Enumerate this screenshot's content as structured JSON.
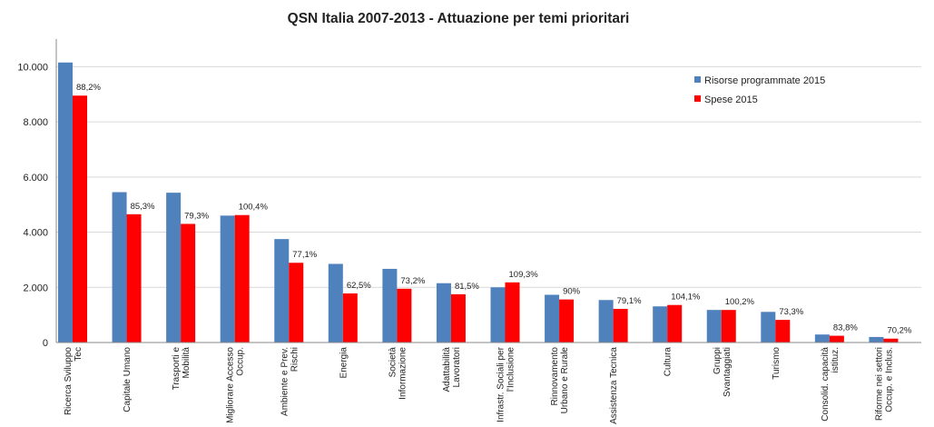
{
  "chart_data": {
    "type": "bar",
    "title": "QSN Italia 2007-2013 - Attuazione per temi prioritari",
    "xlabel": "",
    "ylabel": "",
    "ylim": [
      0,
      11000
    ],
    "yticks": [
      "0",
      "2.000",
      "4.000",
      "6.000",
      "8.000",
      "10.000"
    ],
    "grid": true,
    "legend_position": "top-right",
    "colors": {
      "Risorse programmate 2015": "#4F81BD",
      "Spese 2015": "#FF0000"
    },
    "categories": [
      [
        "Ricerca Sviluppo",
        "Tec"
      ],
      [
        "Capitale Umano"
      ],
      [
        "Trasporti e",
        "Mobilità"
      ],
      [
        "Migliorare Accesso",
        "Occup."
      ],
      [
        "Ambiente e Prev.",
        "Rischi"
      ],
      [
        "Energia"
      ],
      [
        "Società",
        "Informazione"
      ],
      [
        "Adattabilità",
        "Lavoratori"
      ],
      [
        "Infrastr. Sociali per",
        "l'Inclusione"
      ],
      [
        "Rinnovamento",
        "Urbano e Rurale"
      ],
      [
        "Assistenza Tecnica"
      ],
      [
        "Cultura"
      ],
      [
        "Gruppi",
        "Svantaggiati"
      ],
      [
        "Turismo"
      ],
      [
        "Consolid. capacità",
        "istituz."
      ],
      [
        "Riforme nei settori",
        "Occup. e Inclus."
      ]
    ],
    "series": [
      {
        "name": "Risorse programmate 2015",
        "values": [
          10150,
          5450,
          5430,
          4600,
          3750,
          2850,
          2670,
          2150,
          2000,
          1730,
          1540,
          1310,
          1180,
          1110,
          290,
          200
        ]
      },
      {
        "name": "Spese 2015",
        "values": [
          8950,
          4650,
          4300,
          4620,
          2890,
          1780,
          1950,
          1750,
          2180,
          1560,
          1220,
          1360,
          1180,
          820,
          245,
          140
        ]
      }
    ],
    "data_labels": [
      "88,2%",
      "85,3%",
      "79,3%",
      "100,4%",
      "77,1%",
      "62,5%",
      "73,2%",
      "81,5%",
      "109,3%",
      "90%",
      "79,1%",
      "104,1%",
      "100,2%",
      "73,3%",
      "83,8%",
      "70,2%"
    ]
  }
}
